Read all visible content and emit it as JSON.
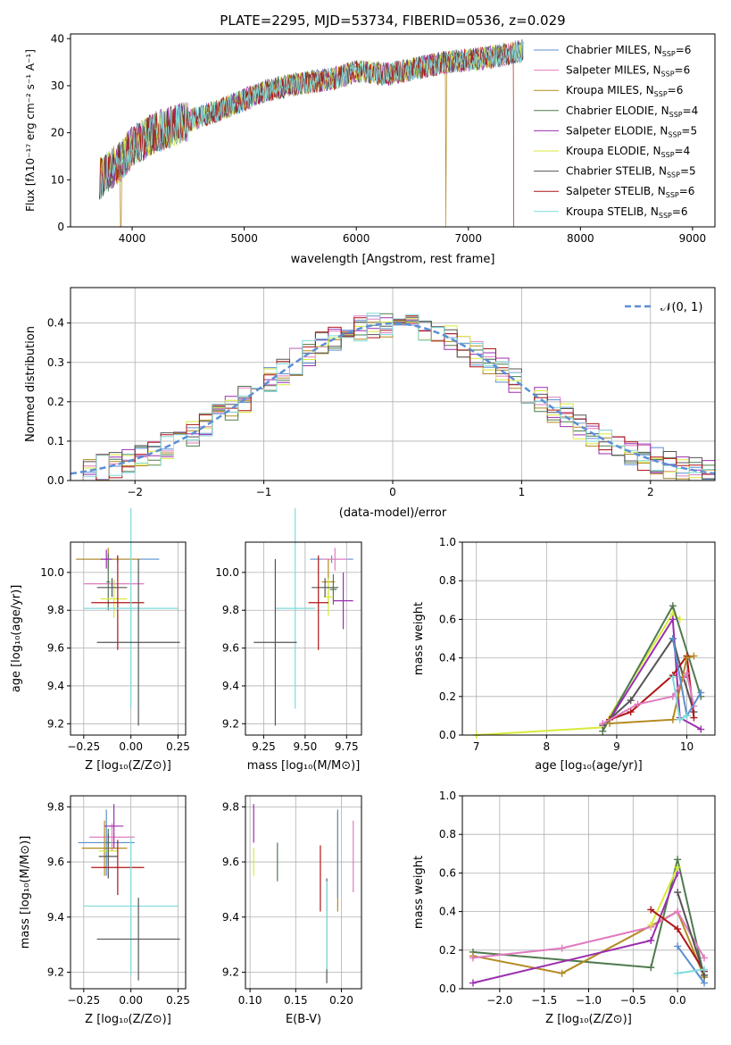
{
  "colors": {
    "chabrier_miles": "#5a8fd0",
    "salpeter_miles": "#e07bc0",
    "kroupa_miles": "#b38a20",
    "chabrier_elodie": "#4f7a4f",
    "salpeter_elodie": "#9b2fae",
    "kroupa_elodie": "#d8ea3a",
    "chabrier_stelib": "#555555",
    "salpeter_stelib": "#b01515",
    "kroupa_stelib": "#7fdada",
    "gauss": "#5b8fd6"
  },
  "panel_spectrum": {
    "title": "PLATE=2295, MJD=53734, FIBERID=0536, z=0.029",
    "xlabel": "wavelength [Angstrom, rest frame]",
    "ylabel": "Flux [fλ10⁻¹⁷ erg cm⁻² s⁻¹ A⁻¹]",
    "xticks": [
      "4000",
      "5000",
      "6000",
      "7000",
      "8000",
      "9000"
    ],
    "yticks": [
      "0",
      "10",
      "20",
      "30",
      "40"
    ],
    "legend": [
      "Chabrier MILES, N_SSP=6",
      "Salpeter MILES, N_SSP=6",
      "Kroupa MILES, N_SSP=6",
      "Chabrier ELODIE, N_SSP=4",
      "Salpeter ELODIE, N_SSP=5",
      "Kroupa ELODIE, N_SSP=4",
      "Chabrier STELIB, N_SSP=5",
      "Salpeter STELIB, N_SSP=6",
      "Kroupa STELIB, N_SSP=6"
    ]
  },
  "panel_hist": {
    "xlabel": "(data-model)/error",
    "ylabel": "Normed distribution",
    "xticks": [
      "−2",
      "−1",
      "0",
      "1",
      "2"
    ],
    "yticks": [
      "0.0",
      "0.1",
      "0.2",
      "0.3",
      "0.4"
    ],
    "legend": "𝒩(0, 1)"
  },
  "panel_z_age": {
    "xlabel": "Z [log₁₀(Z/Z⊙)]",
    "ylabel": "age  [log₁₀(age/yr)]",
    "xticks": [
      "−0.25",
      "0.00",
      "0.25"
    ],
    "yticks": [
      "9.2",
      "9.4",
      "9.6",
      "9.8",
      "10.0"
    ]
  },
  "panel_mass_age": {
    "xlabel": "mass [log₁₀(M/M⊙)]",
    "xticks": [
      "9.25",
      "9.50",
      "9.75"
    ],
    "yticks": [
      "9.2",
      "9.4",
      "9.6",
      "9.8",
      "10.0"
    ]
  },
  "panel_age_weight": {
    "xlabel": "age  [log₁₀(age/yr)]",
    "ylabel": "mass weight",
    "xticks": [
      "7",
      "8",
      "9",
      "10"
    ],
    "yticks": [
      "0.0",
      "0.2",
      "0.4",
      "0.6",
      "0.8",
      "1.0"
    ]
  },
  "panel_z_mass": {
    "xlabel": "Z [log₁₀(Z/Z⊙)]",
    "ylabel": "mass [log₁₀(M/M⊙)]",
    "xticks": [
      "−0.25",
      "0.00",
      "0.25"
    ],
    "yticks": [
      "9.2",
      "9.4",
      "9.6",
      "9.8"
    ]
  },
  "panel_ebv_mass": {
    "xlabel": "E(B-V)",
    "xticks": [
      "0.10",
      "0.15",
      "0.20"
    ],
    "yticks": [
      "9.2",
      "9.4",
      "9.6",
      "9.8"
    ]
  },
  "panel_z_weight": {
    "xlabel": "Z [log₁₀(Z/Z⊙)]",
    "ylabel": "mass weight",
    "xticks": [
      "−2.0",
      "−1.5",
      "−1.0",
      "−0.5",
      "0.0"
    ],
    "yticks": [
      "0.0",
      "0.2",
      "0.4",
      "0.6",
      "0.8",
      "1.0"
    ]
  },
  "chart_data": [
    {
      "type": "line",
      "title": "PLATE=2295, MJD=53734, FIBERID=0536, z=0.029",
      "xlabel": "wavelength [Angstrom, rest frame]",
      "ylabel": "Flux [fλ10⁻¹⁷ erg cm⁻² s⁻¹ A⁻¹]",
      "xlim": [
        3450,
        9200
      ],
      "ylim": [
        0,
        41
      ],
      "continuum": {
        "wavelength": [
          3700,
          3900,
          4000,
          4200,
          4500,
          4800,
          5000,
          5200,
          5500,
          5800,
          6000,
          6300,
          6600,
          6800,
          7000,
          7200,
          7400,
          7500
        ],
        "flux": [
          10,
          14,
          17,
          20,
          22.5,
          25,
          27,
          29,
          30.5,
          31.5,
          33,
          32.5,
          34,
          35,
          35.5,
          36,
          37,
          37.5
        ]
      },
      "series": [
        {
          "name": "Chabrier MILES, N_SSP=6",
          "color_key": "chabrier_miles"
        },
        {
          "name": "Salpeter MILES, N_SSP=6",
          "color_key": "salpeter_miles"
        },
        {
          "name": "Kroupa MILES, N_SSP=6",
          "color_key": "kroupa_miles"
        },
        {
          "name": "Chabrier ELODIE, N_SSP=4",
          "color_key": "chabrier_elodie"
        },
        {
          "name": "Salpeter ELODIE, N_SSP=5",
          "color_key": "salpeter_elodie"
        },
        {
          "name": "Kroupa ELODIE, N_SSP=4",
          "color_key": "kroupa_elodie"
        },
        {
          "name": "Chabrier STELIB, N_SSP=5",
          "color_key": "chabrier_stelib"
        },
        {
          "name": "Salpeter STELIB, N_SSP=6",
          "color_key": "salpeter_stelib"
        },
        {
          "name": "Kroupa STELIB, N_SSP=6",
          "color_key": "kroupa_stelib"
        }
      ]
    },
    {
      "type": "bar",
      "xlabel": "(data-model)/error",
      "ylabel": "Normed distribution",
      "xlim": [
        -2.5,
        2.5
      ],
      "ylim": [
        0,
        0.49
      ],
      "bin_width": 0.1,
      "gaussian": {
        "name": "𝒩(0, 1)",
        "mean": 0,
        "sigma": 1
      },
      "series": [
        {
          "color_key": "chabrier_miles",
          "seed": 1
        },
        {
          "color_key": "salpeter_miles",
          "seed": 2
        },
        {
          "color_key": "kroupa_miles",
          "seed": 3
        },
        {
          "color_key": "chabrier_elodie",
          "seed": 4
        },
        {
          "color_key": "salpeter_elodie",
          "seed": 5
        },
        {
          "color_key": "kroupa_elodie",
          "seed": 6
        },
        {
          "color_key": "chabrier_stelib",
          "seed": 7
        },
        {
          "color_key": "salpeter_stelib",
          "seed": 8
        },
        {
          "color_key": "kroupa_stelib",
          "seed": 9
        }
      ]
    },
    {
      "type": "scatter",
      "description_key": "Z_vs_age",
      "xlim": [
        -0.32,
        0.29
      ],
      "ylim": [
        9.14,
        10.16
      ],
      "points": [
        {
          "color_key": "chabrier_miles",
          "x": -0.07,
          "y": 10.07,
          "xerr": 0.22,
          "yerr": 0.02
        },
        {
          "color_key": "salpeter_miles",
          "x": -0.09,
          "y": 9.94,
          "xerr": 0.16,
          "yerr": 0.02
        },
        {
          "color_key": "kroupa_miles",
          "x": -0.12,
          "y": 10.07,
          "xerr": 0.17,
          "yerr": 0.06
        },
        {
          "color_key": "chabrier_elodie",
          "x": -0.12,
          "y": 9.95,
          "xerr": 0.01,
          "yerr": 0.15
        },
        {
          "color_key": "salpeter_elodie",
          "x": -0.13,
          "y": 10.07,
          "xerr": 0.03,
          "yerr": 0.05
        },
        {
          "color_key": "kroupa_elodie",
          "x": -0.09,
          "y": 9.86,
          "xerr": 0.07,
          "yerr": 0.1
        },
        {
          "color_key": "chabrier_stelib",
          "x": -0.1,
          "y": 9.92,
          "xerr": 0.08,
          "yerr": 0.05
        },
        {
          "color_key": "salpeter_stelib",
          "x": -0.07,
          "y": 9.84,
          "xerr": 0.14,
          "yerr": 0.25
        },
        {
          "color_key": "kroupa_stelib",
          "x": 0.0,
          "y": 9.81,
          "xerr": 0.25,
          "yerr": 0.53
        },
        {
          "color_key": "chabrier_stelib",
          "x": 0.04,
          "y": 9.63,
          "xerr": 0.22,
          "yerr": 0.44
        }
      ]
    },
    {
      "type": "scatter",
      "description_key": "mass_vs_age",
      "xlim": [
        9.14,
        9.84
      ],
      "ylim": [
        9.14,
        10.16
      ],
      "points": [
        {
          "color_key": "chabrier_miles",
          "x": 9.66,
          "y": 10.07,
          "xerr": 0.13,
          "yerr": 0.02
        },
        {
          "color_key": "salpeter_miles",
          "x": 9.68,
          "y": 10.07,
          "xerr": 0.08,
          "yerr": 0.06
        },
        {
          "color_key": "kroupa_miles",
          "x": 9.64,
          "y": 9.95,
          "xerr": 0.04,
          "yerr": 0.12
        },
        {
          "color_key": "chabrier_elodie",
          "x": 9.67,
          "y": 9.91,
          "xerr": 0.02,
          "yerr": 0.08
        },
        {
          "color_key": "salpeter_elodie",
          "x": 9.73,
          "y": 9.85,
          "xerr": 0.06,
          "yerr": 0.15
        },
        {
          "color_key": "kroupa_elodie",
          "x": 9.64,
          "y": 9.87,
          "xerr": 0.03,
          "yerr": 0.1
        },
        {
          "color_key": "chabrier_stelib",
          "x": 9.62,
          "y": 9.92,
          "xerr": 0.08,
          "yerr": 0.05
        },
        {
          "color_key": "salpeter_stelib",
          "x": 9.58,
          "y": 9.84,
          "xerr": 0.06,
          "yerr": 0.25
        },
        {
          "color_key": "kroupa_stelib",
          "x": 9.44,
          "y": 9.81,
          "xerr": 0.12,
          "yerr": 0.53
        },
        {
          "color_key": "chabrier_stelib",
          "x": 9.32,
          "y": 9.63,
          "xerr": 0.13,
          "yerr": 0.44
        }
      ]
    },
    {
      "type": "line",
      "description_key": "age_vs_weight",
      "xlim": [
        6.8,
        10.4
      ],
      "ylim": [
        0,
        1.0
      ],
      "series": [
        {
          "color_key": "kroupa_elodie",
          "x": [
            7.0,
            8.8,
            9.8,
            9.9
          ],
          "y": [
            0.0,
            0.04,
            0.63,
            0.6
          ]
        },
        {
          "color_key": "chabrier_elodie",
          "x": [
            8.8,
            9.8,
            10.2
          ],
          "y": [
            0.02,
            0.67,
            0.2
          ]
        },
        {
          "color_key": "salpeter_elodie",
          "x": [
            8.9,
            9.8,
            9.9,
            10.2
          ],
          "y": [
            0.08,
            0.6,
            0.09,
            0.03
          ]
        },
        {
          "color_key": "chabrier_stelib",
          "x": [
            8.8,
            9.2,
            9.8,
            9.95,
            10.1
          ],
          "y": [
            0.05,
            0.18,
            0.5,
            0.3,
            0.12
          ]
        },
        {
          "color_key": "salpeter_stelib",
          "x": [
            8.9,
            9.2,
            9.8,
            10.0,
            10.1
          ],
          "y": [
            0.08,
            0.12,
            0.31,
            0.41,
            0.09
          ]
        },
        {
          "color_key": "salpeter_miles",
          "x": [
            8.8,
            9.3,
            9.8,
            10.0,
            10.1
          ],
          "y": [
            0.06,
            0.16,
            0.2,
            0.32,
            0.15
          ]
        },
        {
          "color_key": "kroupa_miles",
          "x": [
            8.9,
            9.8,
            10.0,
            10.1
          ],
          "y": [
            0.06,
            0.08,
            0.4,
            0.41
          ]
        },
        {
          "color_key": "chabrier_miles",
          "x": [
            9.8,
            10.0,
            10.2
          ],
          "y": [
            0.5,
            0.1,
            0.22
          ]
        },
        {
          "color_key": "kroupa_stelib",
          "x": [
            9.8,
            9.9,
            10.0
          ],
          "y": [
            0.3,
            0.08,
            0.1
          ]
        }
      ]
    },
    {
      "type": "scatter",
      "description_key": "Z_vs_mass",
      "xlim": [
        -0.32,
        0.29
      ],
      "ylim": [
        9.14,
        9.84
      ],
      "points": [
        {
          "color_key": "chabrier_miles",
          "x": -0.13,
          "y": 9.67,
          "xerr": 0.15,
          "yerr": 0.12
        },
        {
          "color_key": "salpeter_miles",
          "x": -0.1,
          "y": 9.69,
          "xerr": 0.12,
          "yerr": 0.05
        },
        {
          "color_key": "kroupa_miles",
          "x": -0.14,
          "y": 9.65,
          "xerr": 0.12,
          "yerr": 0.1
        },
        {
          "color_key": "chabrier_elodie",
          "x": -0.12,
          "y": 9.67,
          "xerr": 0.01,
          "yerr": 0.05
        },
        {
          "color_key": "salpeter_elodie",
          "x": -0.09,
          "y": 9.73,
          "xerr": 0.05,
          "yerr": 0.08
        },
        {
          "color_key": "kroupa_elodie",
          "x": -0.12,
          "y": 9.64,
          "xerr": 0.05,
          "yerr": 0.05
        },
        {
          "color_key": "chabrier_stelib",
          "x": -0.12,
          "y": 9.62,
          "xerr": 0.05,
          "yerr": 0.08
        },
        {
          "color_key": "salpeter_stelib",
          "x": -0.07,
          "y": 9.58,
          "xerr": 0.14,
          "yerr": 0.1
        },
        {
          "color_key": "kroupa_stelib",
          "x": 0.0,
          "y": 9.44,
          "xerr": 0.25,
          "yerr": 0.25
        },
        {
          "color_key": "chabrier_stelib",
          "x": 0.04,
          "y": 9.32,
          "xerr": 0.22,
          "yerr": 0.15
        }
      ]
    },
    {
      "type": "scatter",
      "description_key": "EBV_vs_mass",
      "xlim": [
        0.095,
        0.222
      ],
      "ylim": [
        9.14,
        9.84
      ],
      "points": [
        {
          "color_key": "salpeter_elodie",
          "x": 0.104,
          "y": 9.74,
          "xerr": 0.0,
          "yerr": 0.07
        },
        {
          "color_key": "kroupa_elodie",
          "x": 0.104,
          "y": 9.6,
          "xerr": 0.0,
          "yerr": 0.05
        },
        {
          "color_key": "chabrier_elodie",
          "x": 0.13,
          "y": 9.6,
          "xerr": 0.0,
          "yerr": 0.07
        },
        {
          "color_key": "salpeter_stelib",
          "x": 0.177,
          "y": 9.54,
          "xerr": 0.0,
          "yerr": 0.12
        },
        {
          "color_key": "chabrier_stelib",
          "x": 0.184,
          "y": 9.35,
          "xerr": 0.0,
          "yerr": 0.19
        },
        {
          "color_key": "kroupa_stelib",
          "x": 0.184,
          "y": 9.37,
          "xerr": 0.0,
          "yerr": 0.16
        },
        {
          "color_key": "kroupa_miles",
          "x": 0.196,
          "y": 9.6,
          "xerr": 0.0,
          "yerr": 0.18
        },
        {
          "color_key": "chabrier_miles",
          "x": 0.196,
          "y": 9.63,
          "xerr": 0.0,
          "yerr": 0.16
        },
        {
          "color_key": "salpeter_miles",
          "x": 0.213,
          "y": 9.62,
          "xerr": 0.0,
          "yerr": 0.13
        }
      ]
    },
    {
      "type": "line",
      "description_key": "Z_vs_weight",
      "xlim": [
        -2.42,
        0.42
      ],
      "ylim": [
        0,
        1.0
      ],
      "series": [
        {
          "color_key": "chabrier_elodie",
          "x": [
            -2.3,
            -0.3,
            0.0,
            0.3
          ],
          "y": [
            0.19,
            0.11,
            0.67,
            0.06
          ]
        },
        {
          "color_key": "kroupa_miles",
          "x": [
            -2.3,
            -1.3,
            0.0,
            0.3
          ],
          "y": [
            0.17,
            0.08,
            0.4,
            0.06
          ]
        },
        {
          "color_key": "salpeter_miles",
          "x": [
            -2.3,
            -1.3,
            -0.3,
            0.0,
            0.3
          ],
          "y": [
            0.16,
            0.21,
            0.32,
            0.4,
            0.16
          ]
        },
        {
          "color_key": "salpeter_elodie",
          "x": [
            -2.3,
            -0.3,
            0.0
          ],
          "y": [
            0.03,
            0.25,
            0.6
          ]
        },
        {
          "color_key": "kroupa_elodie",
          "x": [
            -0.3,
            0.0
          ],
          "y": [
            0.33,
            0.63
          ]
        },
        {
          "color_key": "salpeter_stelib",
          "x": [
            -0.3,
            0.0,
            0.3
          ],
          "y": [
            0.41,
            0.31,
            0.09
          ]
        },
        {
          "color_key": "chabrier_stelib",
          "x": [
            0.0,
            0.3
          ],
          "y": [
            0.5,
            0.07
          ]
        },
        {
          "color_key": "chabrier_miles",
          "x": [
            0.0,
            0.3
          ],
          "y": [
            0.22,
            0.03
          ]
        },
        {
          "color_key": "kroupa_stelib",
          "x": [
            0.0,
            0.3
          ],
          "y": [
            0.08,
            0.1
          ]
        }
      ]
    }
  ]
}
